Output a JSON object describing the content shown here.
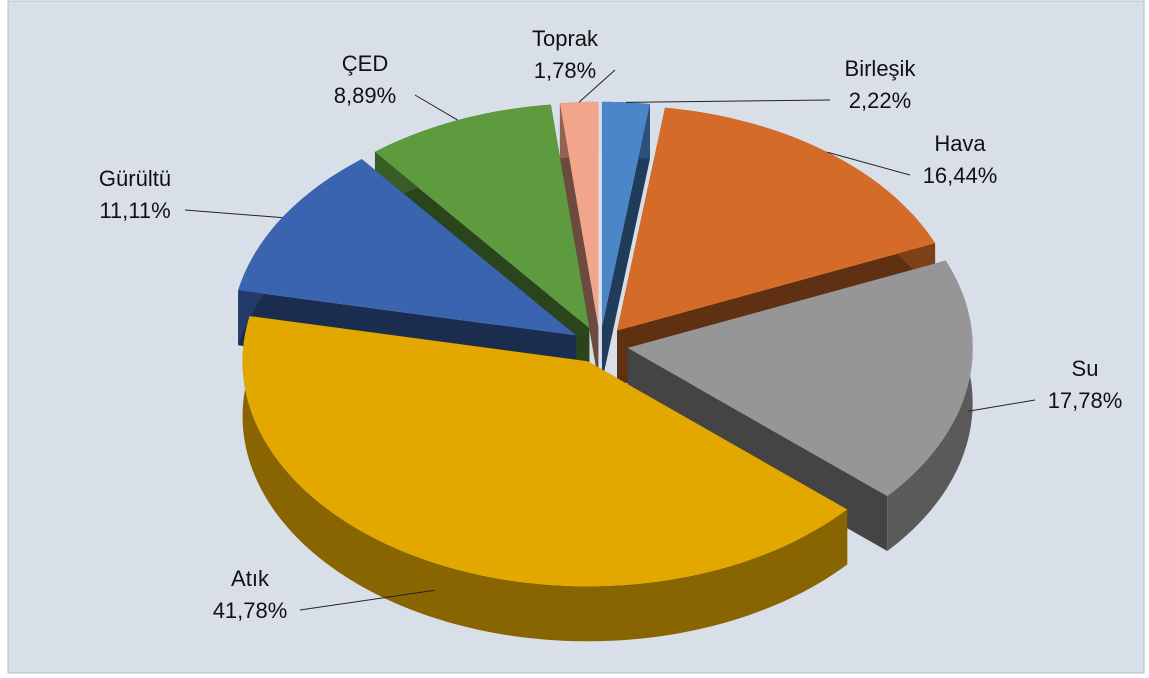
{
  "chart_data": {
    "type": "pie",
    "categories": [
      "Birleşik",
      "Hava",
      "Su",
      "Atık",
      "Gürültü",
      "ÇED",
      "Toprak"
    ],
    "values": [
      2.22,
      16.44,
      17.78,
      41.78,
      11.11,
      8.89,
      1.78
    ],
    "value_labels": [
      "2,22%",
      "16,44%",
      "17,78%",
      "41,78%",
      "11,11%",
      "8,89%",
      "1,78%"
    ],
    "colors": [
      "#4a86c8",
      "#d46b28",
      "#969696",
      "#e3a800",
      "#3a63b0",
      "#5e9a3e",
      "#f2a58a"
    ]
  }
}
